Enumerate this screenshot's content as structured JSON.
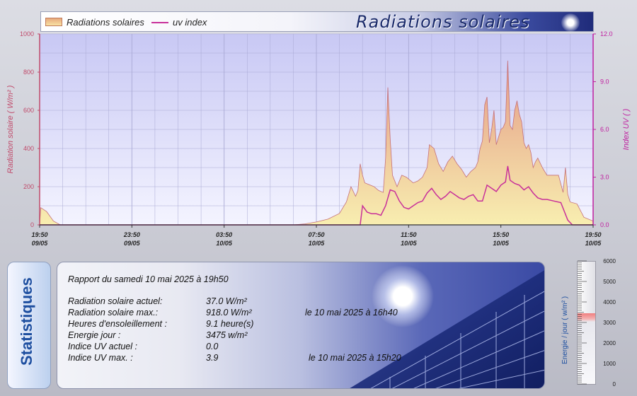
{
  "banner": {
    "title": "Radiations solaires",
    "legend_radiation": "Radiations solaires",
    "legend_uv": "uv index"
  },
  "colors": {
    "plot_bg_top": "#c8c8f4",
    "plot_bg_bottom": "#f4f4ff",
    "radiation_fill_top": "#e49a86",
    "radiation_fill_bottom": "#f8eeb0",
    "uv_line": "#c8309a",
    "left_axis": "#c04a6a",
    "right_axis": "#c020a0"
  },
  "chart_data": {
    "type": "area",
    "title": "Radiations solaires",
    "ylabel": "Radiation solaire ( W/m² )",
    "ylabel_right": "Index UV ( )",
    "ylim": [
      0,
      1000
    ],
    "ylim_right": [
      0,
      12
    ],
    "yticks": [
      "0",
      "200",
      "400",
      "600",
      "800",
      "1000"
    ],
    "yticks_right": [
      "0.0",
      "3.0",
      "6.0",
      "9.0",
      "12.0"
    ],
    "xlim_hours": [
      0,
      24
    ],
    "xticks": [
      {
        "t": 0,
        "time": "19:50",
        "date": "09/05"
      },
      {
        "t": 4,
        "time": "23:50",
        "date": "09/05"
      },
      {
        "t": 8,
        "time": "03:50",
        "date": "10/05"
      },
      {
        "t": 12,
        "time": "07:50",
        "date": "10/05"
      },
      {
        "t": 16,
        "time": "11:50",
        "date": "10/05"
      },
      {
        "t": 20,
        "time": "15:50",
        "date": "10/05"
      },
      {
        "t": 24,
        "time": "19:50",
        "date": "10/05"
      }
    ],
    "grid": true,
    "legend_position": "top-left",
    "series": [
      {
        "name": "Radiations solaires",
        "points": [
          [
            0,
            0
          ],
          [
            0.05,
            90
          ],
          [
            0.3,
            70
          ],
          [
            0.6,
            20
          ],
          [
            0.9,
            0
          ],
          [
            11,
            0
          ],
          [
            11.5,
            5
          ],
          [
            12,
            15
          ],
          [
            12.5,
            30
          ],
          [
            13,
            60
          ],
          [
            13.3,
            120
          ],
          [
            13.5,
            200
          ],
          [
            13.7,
            150
          ],
          [
            13.8,
            180
          ],
          [
            13.9,
            320
          ],
          [
            14,
            260
          ],
          [
            14.1,
            220
          ],
          [
            14.3,
            210
          ],
          [
            14.5,
            200
          ],
          [
            14.7,
            180
          ],
          [
            14.9,
            170
          ],
          [
            15,
            350
          ],
          [
            15.1,
            720
          ],
          [
            15.2,
            450
          ],
          [
            15.3,
            260
          ],
          [
            15.5,
            200
          ],
          [
            15.7,
            260
          ],
          [
            15.9,
            250
          ],
          [
            16.2,
            220
          ],
          [
            16.4,
            230
          ],
          [
            16.6,
            250
          ],
          [
            16.8,
            300
          ],
          [
            16.9,
            420
          ],
          [
            17.1,
            400
          ],
          [
            17.3,
            320
          ],
          [
            17.5,
            280
          ],
          [
            17.7,
            330
          ],
          [
            17.9,
            360
          ],
          [
            18.1,
            320
          ],
          [
            18.3,
            290
          ],
          [
            18.5,
            250
          ],
          [
            18.7,
            280
          ],
          [
            18.9,
            300
          ],
          [
            19,
            330
          ],
          [
            19.1,
            400
          ],
          [
            19.2,
            440
          ],
          [
            19.3,
            630
          ],
          [
            19.4,
            670
          ],
          [
            19.5,
            430
          ],
          [
            19.6,
            500
          ],
          [
            19.7,
            600
          ],
          [
            19.8,
            420
          ],
          [
            19.9,
            460
          ],
          [
            20,
            500
          ],
          [
            20.1,
            510
          ],
          [
            20.2,
            540
          ],
          [
            20.3,
            860
          ],
          [
            20.4,
            520
          ],
          [
            20.5,
            500
          ],
          [
            20.6,
            600
          ],
          [
            20.7,
            650
          ],
          [
            20.8,
            580
          ],
          [
            20.9,
            540
          ],
          [
            21,
            430
          ],
          [
            21.1,
            400
          ],
          [
            21.2,
            420
          ],
          [
            21.3,
            380
          ],
          [
            21.4,
            300
          ],
          [
            21.5,
            330
          ],
          [
            21.6,
            350
          ],
          [
            21.8,
            300
          ],
          [
            22,
            260
          ],
          [
            22.2,
            260
          ],
          [
            22.5,
            260
          ],
          [
            22.7,
            170
          ],
          [
            22.8,
            300
          ],
          [
            22.9,
            160
          ],
          [
            23,
            120
          ],
          [
            23.3,
            110
          ],
          [
            23.6,
            40
          ],
          [
            24,
            20
          ]
        ]
      },
      {
        "name": "uv index",
        "points": [
          [
            0,
            0
          ],
          [
            0.5,
            0
          ],
          [
            13.9,
            0
          ],
          [
            14,
            1.2
          ],
          [
            14.2,
            0.8
          ],
          [
            14.4,
            0.7
          ],
          [
            14.6,
            0.7
          ],
          [
            14.8,
            0.6
          ],
          [
            15,
            1.2
          ],
          [
            15.2,
            2.2
          ],
          [
            15.4,
            2.1
          ],
          [
            15.6,
            1.5
          ],
          [
            15.8,
            1.1
          ],
          [
            16,
            1.0
          ],
          [
            16.2,
            1.2
          ],
          [
            16.4,
            1.4
          ],
          [
            16.6,
            1.5
          ],
          [
            16.8,
            2.0
          ],
          [
            17,
            2.3
          ],
          [
            17.2,
            1.9
          ],
          [
            17.4,
            1.6
          ],
          [
            17.6,
            1.8
          ],
          [
            17.8,
            2.1
          ],
          [
            18,
            1.9
          ],
          [
            18.2,
            1.7
          ],
          [
            18.4,
            1.6
          ],
          [
            18.6,
            1.8
          ],
          [
            18.8,
            1.9
          ],
          [
            19,
            1.5
          ],
          [
            19.2,
            1.5
          ],
          [
            19.4,
            2.5
          ],
          [
            19.6,
            2.3
          ],
          [
            19.8,
            2.1
          ],
          [
            20,
            2.5
          ],
          [
            20.2,
            2.7
          ],
          [
            20.3,
            3.7
          ],
          [
            20.4,
            2.8
          ],
          [
            20.6,
            2.6
          ],
          [
            20.8,
            2.5
          ],
          [
            21,
            2.2
          ],
          [
            21.2,
            2.4
          ],
          [
            21.4,
            2.0
          ],
          [
            21.6,
            1.7
          ],
          [
            21.8,
            1.6
          ],
          [
            22,
            1.6
          ],
          [
            22.3,
            1.5
          ],
          [
            22.6,
            1.4
          ],
          [
            22.9,
            0.3
          ],
          [
            23.1,
            0
          ],
          [
            24,
            0
          ]
        ]
      }
    ]
  },
  "stats": {
    "tab_label": "Statistiques",
    "report": "Rapport du samedi 10 mai 2025 à 19h50",
    "rows": [
      {
        "label": "Radiation solaire actuel:",
        "value": "37.0 W/m²",
        "extra": ""
      },
      {
        "label": "Radiation solaire max.:",
        "value": "918.0 W/m²",
        "extra": "le 10 mai 2025 à 16h40"
      },
      {
        "label": "Heures d'ensoleillement :",
        "value": "9.1 heure(s)",
        "extra": ""
      },
      {
        "label": "Energie jour :",
        "value": "3475 w/m²",
        "extra": ""
      },
      {
        "label": "Indice UV actuel :",
        "value": "0.0",
        "extra": ""
      },
      {
        "label": "Indice UV max. :",
        "value": "3.9",
        "extra": "le 10 mai 2025 à 15h20"
      }
    ]
  },
  "gauge": {
    "label": "Energie / jour ( w/m² )",
    "value": 3475,
    "max": 6000,
    "ticks": [
      "0",
      "1000",
      "2000",
      "3000",
      "4000",
      "5000",
      "6000"
    ]
  }
}
